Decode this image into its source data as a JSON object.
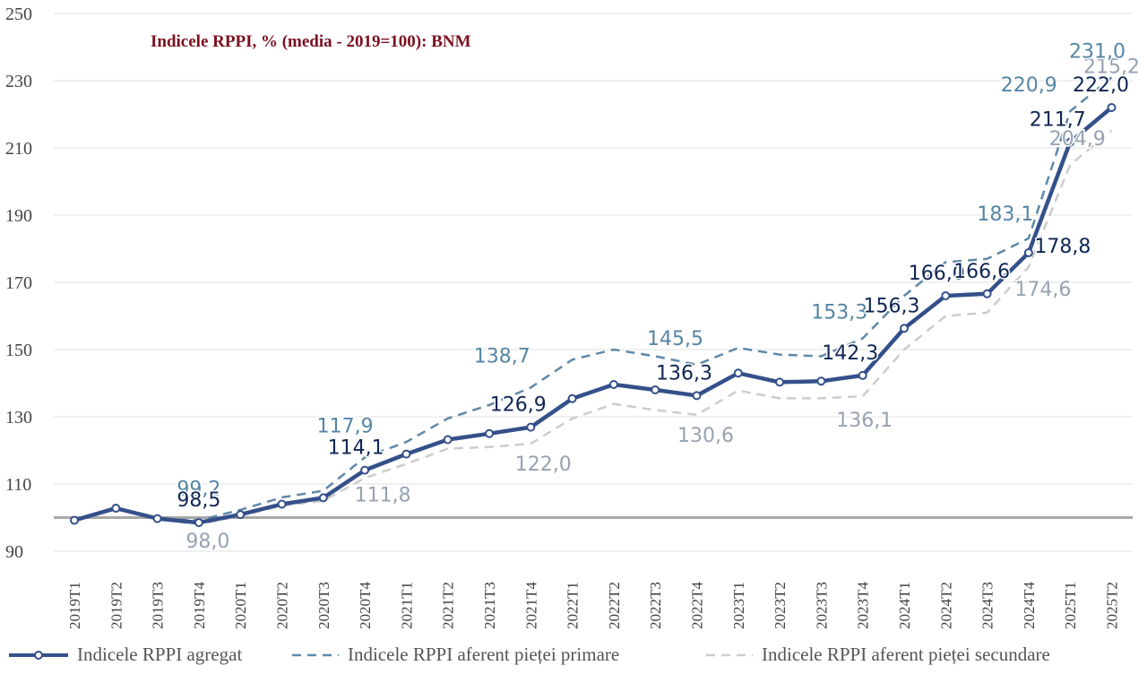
{
  "chart_data": {
    "type": "line",
    "title": "Indicele RPPI, % (media - 2019=100): BNM",
    "categories": [
      "2019T1",
      "2019T2",
      "2019T3",
      "2019T4",
      "2020T1",
      "2020T2",
      "2020T3",
      "2020T4",
      "2021T1",
      "2021T2",
      "2021T3",
      "2021T4",
      "2022T1",
      "2022T2",
      "2022T3",
      "2022T4",
      "2023T1",
      "2023T2",
      "2023T3",
      "2023T4",
      "2024T1",
      "2024T2",
      "2024T3",
      "2024T4",
      "2025T1",
      "2025T2"
    ],
    "ylim": [
      90,
      250
    ],
    "yticks": [
      "90",
      "110",
      "130",
      "150",
      "170",
      "190",
      "210",
      "230",
      "250"
    ],
    "reference_line": 100,
    "grid": true,
    "legend_position": "bottom",
    "series": [
      {
        "name": "Indicele RPPI agregat",
        "color": "#34508a",
        "style": "solid-markers",
        "values": [
          99.2,
          102.8,
          99.7,
          98.5,
          100.9,
          104.0,
          105.9,
          114.1,
          118.9,
          123.2,
          125.0,
          126.9,
          135.4,
          139.6,
          138.0,
          136.3,
          143.0,
          140.3,
          140.6,
          142.3,
          156.3,
          166.0,
          166.6,
          178.8,
          211.7,
          222.0
        ],
        "labels": {
          "3": "98,5",
          "7": "114,1",
          "11": "126,9",
          "15": "136,3",
          "19": "142,3",
          "20": "156,3",
          "21": "166,0",
          "22": "166,6",
          "23": "178,8",
          "24": "211,7",
          "25": "222,0"
        }
      },
      {
        "name": "Indicele RPPI aferent pieței primare",
        "color": "#5f88a8",
        "style": "dashed",
        "values": [
          99.0,
          102.5,
          99.6,
          99.2,
          102.3,
          106.0,
          108.0,
          117.9,
          122.5,
          129.5,
          133.5,
          138.7,
          147.0,
          150.0,
          148.0,
          145.5,
          150.5,
          148.5,
          148.0,
          153.3,
          166.0,
          176.0,
          177.0,
          183.1,
          220.9,
          231.0
        ],
        "labels": {
          "3": "99,2",
          "7": "117,9",
          "11": "138,7",
          "15": "145,5",
          "19": "153,3",
          "23": "183,1",
          "24": "220,9",
          "25": "231,0"
        }
      },
      {
        "name": "Indicele RPPI aferent pieței secundare",
        "color": "#cccccc",
        "style": "dashed",
        "values": [
          99.2,
          102.6,
          99.6,
          98.0,
          100.5,
          103.5,
          105.0,
          111.8,
          116.0,
          120.5,
          121.0,
          122.0,
          129.5,
          133.8,
          132.0,
          130.6,
          137.8,
          135.5,
          135.5,
          136.1,
          150.0,
          160.0,
          161.0,
          174.6,
          204.9,
          215.2
        ],
        "labels": {
          "3": "98,0",
          "7": "111,8",
          "11": "122,0",
          "15": "130,6",
          "19": "136,1",
          "23": "174,6",
          "24": "204,9",
          "25": "215,2"
        }
      }
    ]
  }
}
